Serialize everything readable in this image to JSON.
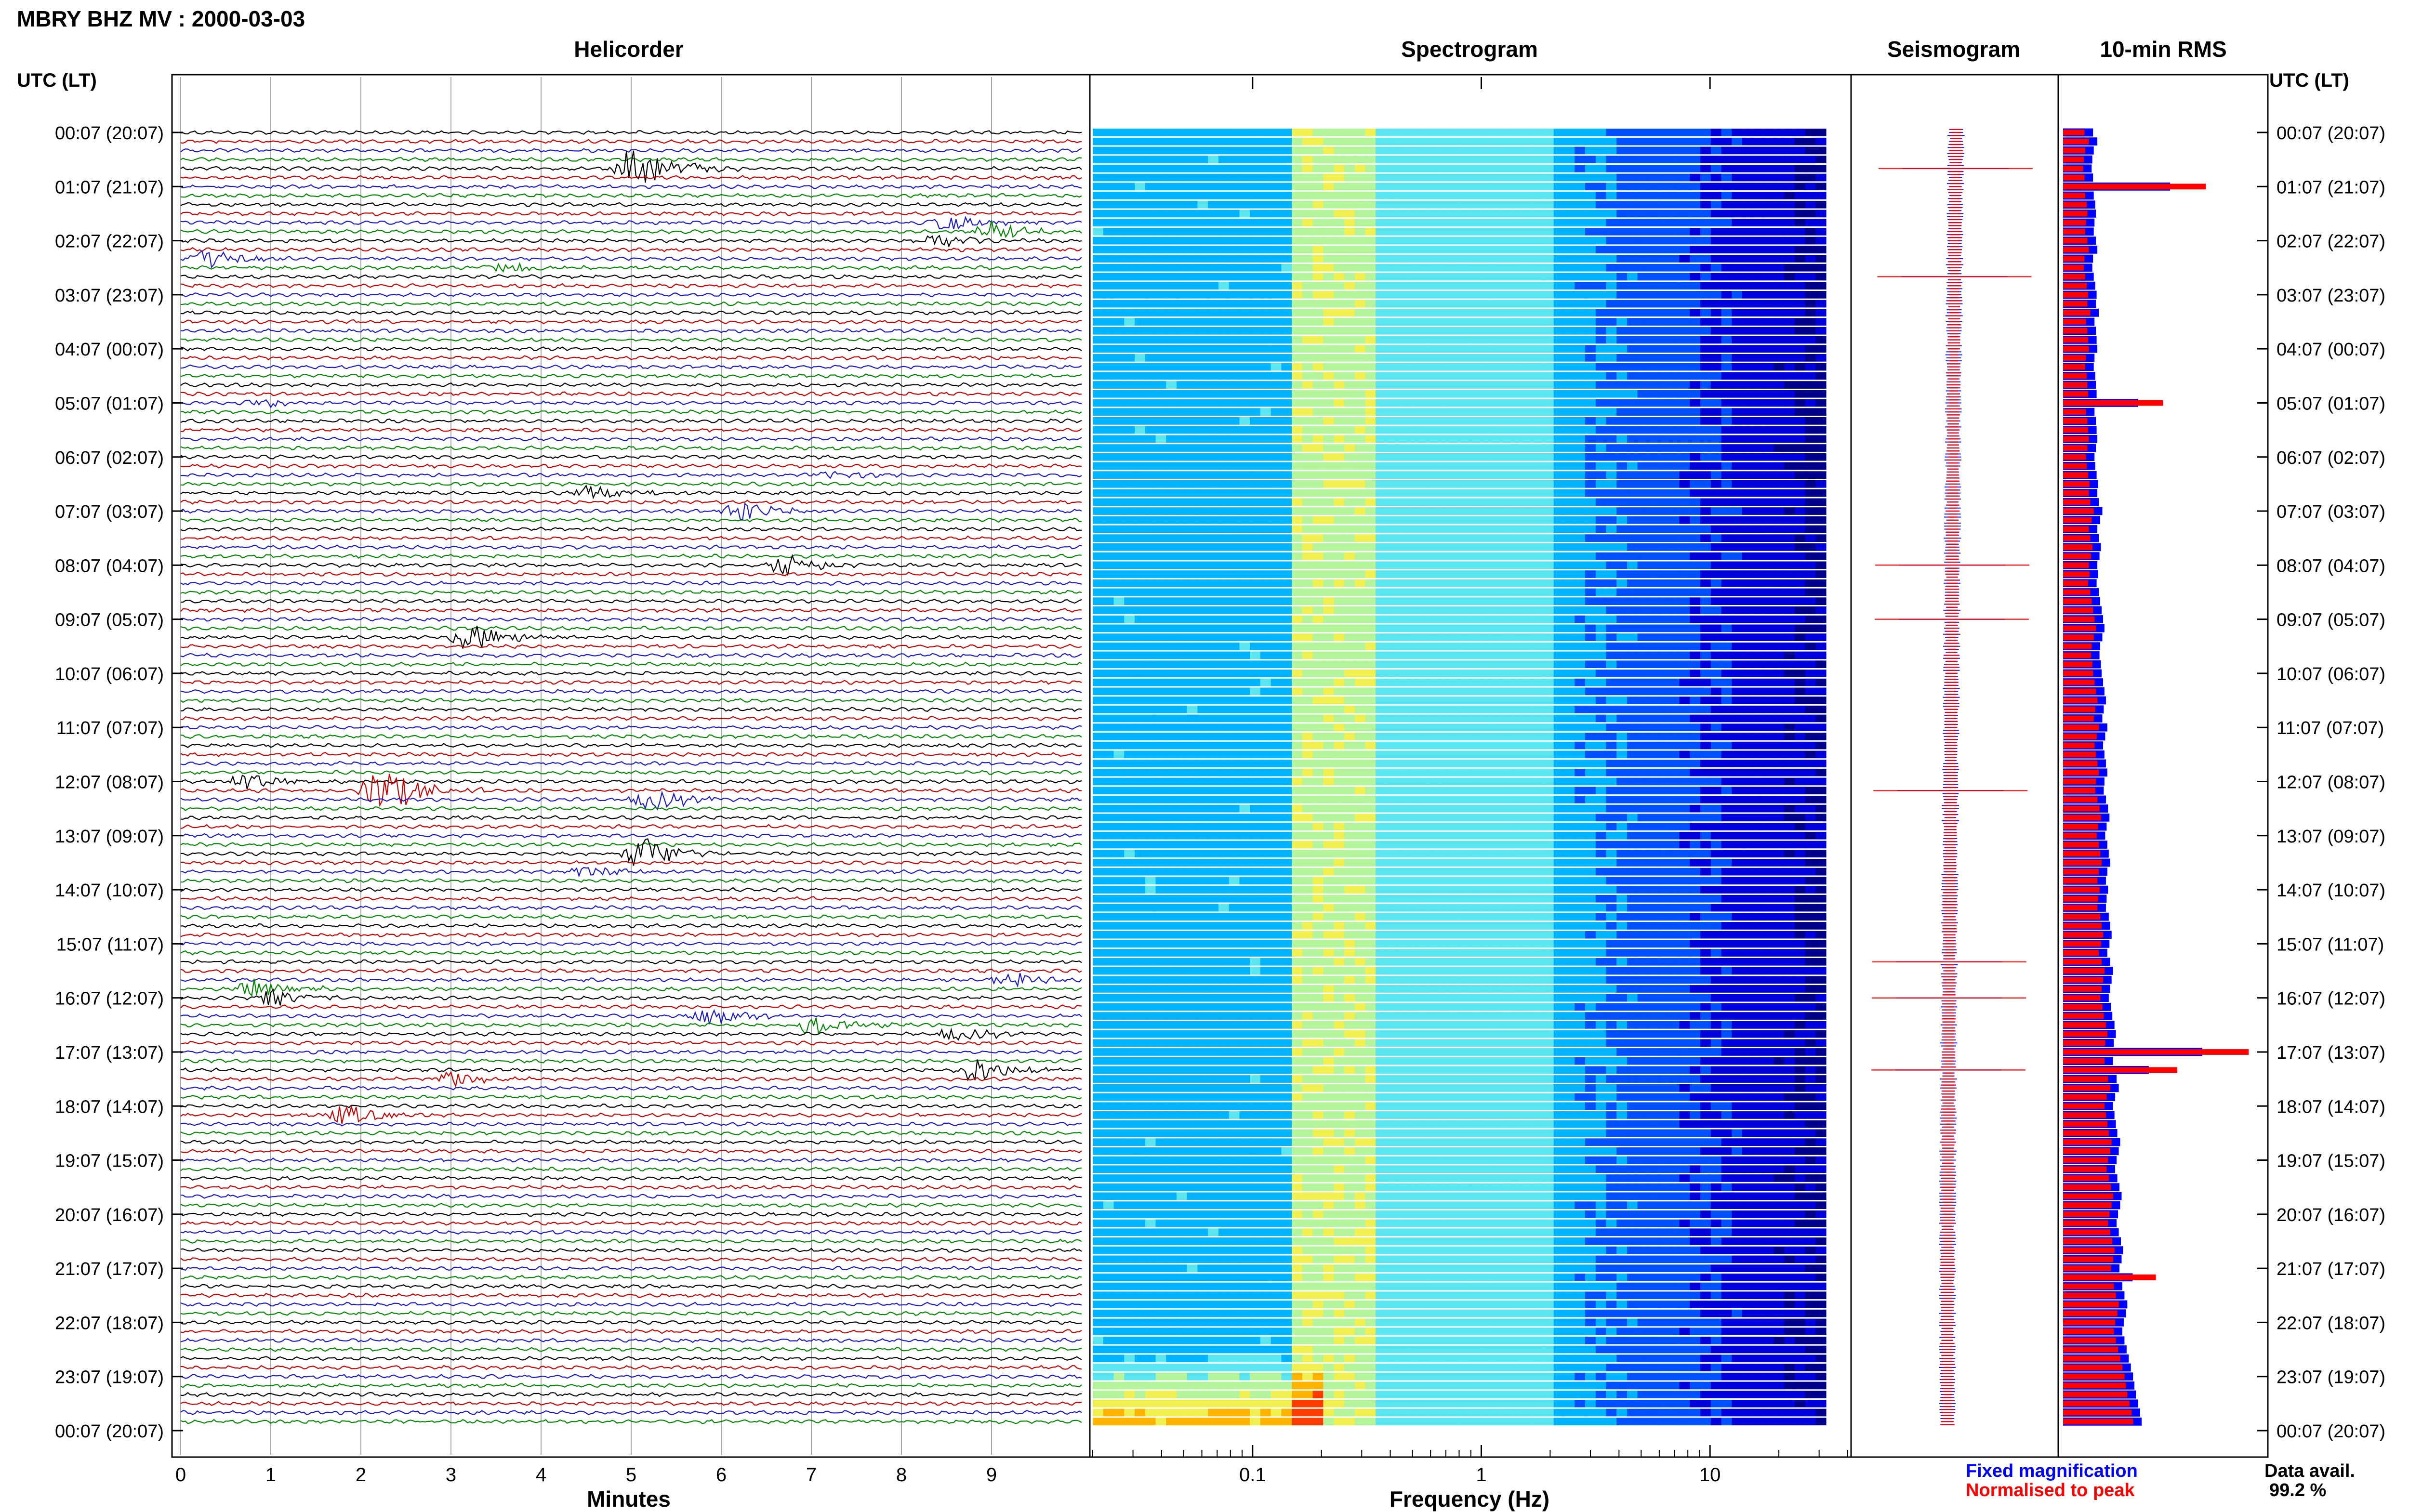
{
  "header": {
    "station_title": "MBRY BHZ MV : 2000-03-03",
    "left_axis_title": "UTC (LT)",
    "right_axis_title": "UTC (LT)"
  },
  "panels": {
    "helicorder": {
      "title": "Helicorder",
      "xlabel": "Minutes"
    },
    "spectrogram": {
      "title": "Spectrogram",
      "xlabel": "Frequency (Hz)"
    },
    "seismogram": {
      "title": "Seismogram"
    },
    "rms": {
      "title": "10-min RMS"
    }
  },
  "legend": {
    "fixed_label": "Fixed magnification",
    "normalised_label": "Normalised to peak"
  },
  "data_availability": {
    "label": "Data avail.",
    "value": "99.2 %"
  },
  "colors": {
    "trace_colors": [
      "#000000",
      "#cc0000",
      "#1a1acc",
      "#008800"
    ],
    "fixed_magnification": "#0000ff",
    "normalised_to_peak": "#ff0000",
    "grid": "#888888"
  },
  "chart_data": [
    {
      "type": "line",
      "name": "helicorder",
      "x_ticks": [
        "0",
        "1",
        "2",
        "3",
        "4",
        "5",
        "6",
        "7",
        "8",
        "9"
      ],
      "xlim": [
        0,
        10
      ],
      "time_labels": [
        "00:07 (20:07)",
        "01:07 (21:07)",
        "02:07 (22:07)",
        "03:07 (23:07)",
        "04:07 (00:07)",
        "05:07 (01:07)",
        "06:07 (02:07)",
        "07:07 (03:07)",
        "08:07 (04:07)",
        "09:07 (05:07)",
        "10:07 (06:07)",
        "11:07 (07:07)",
        "12:07 (08:07)",
        "13:07 (09:07)",
        "14:07 (10:07)",
        "15:07 (11:07)",
        "16:07 (12:07)",
        "17:07 (13:07)",
        "18:07 (14:07)",
        "19:07 (15:07)",
        "20:07 (16:07)",
        "21:07 (17:07)",
        "22:07 (18:07)",
        "23:07 (19:07)",
        "00:07 (20:07)"
      ],
      "rows": 144,
      "events": [
        {
          "row": 4,
          "minute": 5.0,
          "amp": 3.5
        },
        {
          "row": 10,
          "minute": 8.5,
          "amp": 1.3
        },
        {
          "row": 11,
          "minute": 9.0,
          "amp": 1.2
        },
        {
          "row": 12,
          "minute": 8.4,
          "amp": 1.0
        },
        {
          "row": 14,
          "minute": 0.3,
          "amp": 1.4
        },
        {
          "row": 15,
          "minute": 3.5,
          "amp": 0.9
        },
        {
          "row": 30,
          "minute": 0.9,
          "amp": 0.6
        },
        {
          "row": 38,
          "minute": 7.2,
          "amp": 0.6
        },
        {
          "row": 40,
          "minute": 4.5,
          "amp": 1.2
        },
        {
          "row": 42,
          "minute": 6.2,
          "amp": 1.5
        },
        {
          "row": 48,
          "minute": 6.7,
          "amp": 1.6
        },
        {
          "row": 56,
          "minute": 3.2,
          "amp": 2.0
        },
        {
          "row": 72,
          "minute": 0.7,
          "amp": 1.3
        },
        {
          "row": 73,
          "minute": 2.2,
          "amp": 3.6
        },
        {
          "row": 74,
          "minute": 5.2,
          "amp": 1.6
        },
        {
          "row": 80,
          "minute": 5.1,
          "amp": 2.4
        },
        {
          "row": 82,
          "minute": 4.5,
          "amp": 0.9
        },
        {
          "row": 94,
          "minute": 9.2,
          "amp": 1.2
        },
        {
          "row": 95,
          "minute": 0.8,
          "amp": 1.3
        },
        {
          "row": 96,
          "minute": 1.0,
          "amp": 1.2
        },
        {
          "row": 98,
          "minute": 5.8,
          "amp": 1.5
        },
        {
          "row": 99,
          "minute": 7.0,
          "amp": 1.3
        },
        {
          "row": 100,
          "minute": 8.6,
          "amp": 1.0
        },
        {
          "row": 104,
          "minute": 8.8,
          "amp": 1.8
        },
        {
          "row": 105,
          "minute": 3.0,
          "amp": 1.2
        },
        {
          "row": 109,
          "minute": 1.8,
          "amp": 1.4
        }
      ]
    },
    {
      "type": "heatmap",
      "name": "spectrogram",
      "x_scale": "log",
      "xlim": [
        0.02,
        40
      ],
      "x_ticks": [
        "0.1",
        "1",
        "10"
      ],
      "rows": 144,
      "colormap": [
        "#00008c",
        "#0000dc",
        "#0050ff",
        "#00b4ff",
        "#5ae6f0",
        "#b4f59b",
        "#f0f050",
        "#ffb400",
        "#ff3c00"
      ],
      "energy_peak_hz": 0.2
    },
    {
      "type": "line",
      "name": "seismogram",
      "description_series": [
        "Fixed magnification",
        "Normalised to peak"
      ],
      "spikes_rows": [
        4,
        16,
        48,
        54,
        73,
        92,
        96,
        104
      ]
    },
    {
      "type": "bar",
      "name": "10-min RMS",
      "orientation": "horizontal",
      "series": [
        {
          "name": "Fixed magnification",
          "values": [
            0.42,
            0.48,
            0.43,
            0.41,
            0.4,
            0.42,
            0.44,
            0.43,
            0.45,
            0.46,
            0.44,
            0.43,
            0.46,
            0.48,
            0.42,
            0.41,
            0.43,
            0.45,
            0.47,
            0.46,
            0.5,
            0.44,
            0.46,
            0.47,
            0.48,
            0.44,
            0.43,
            0.45,
            0.46,
            0.47,
            0.45,
            0.44,
            0.46,
            0.47,
            0.48,
            0.46,
            0.44,
            0.45,
            0.47,
            0.49,
            0.48,
            0.5,
            0.55,
            0.52,
            0.48,
            0.5,
            0.53,
            0.51,
            0.48,
            0.49,
            0.47,
            0.5,
            0.52,
            0.54,
            0.56,
            0.58,
            0.55,
            0.52,
            0.51,
            0.53,
            0.54,
            0.56,
            0.58,
            0.6,
            0.57,
            0.55,
            0.62,
            0.59,
            0.56,
            0.58,
            0.6,
            0.62,
            0.58,
            0.57,
            0.6,
            0.63,
            0.65,
            0.61,
            0.59,
            0.62,
            0.64,
            0.66,
            0.62,
            0.6,
            0.63,
            0.61,
            0.6,
            0.64,
            0.66,
            0.68,
            0.65,
            0.62,
            0.66,
            0.7,
            0.68,
            0.66,
            0.64,
            0.67,
            0.69,
            0.72,
            0.74,
            0.71,
            0.68,
            0.7,
            0.72,
            0.75,
            0.78,
            0.73,
            0.7,
            0.72,
            0.74,
            0.76,
            0.8,
            0.78,
            0.75,
            0.73,
            0.76,
            0.79,
            0.82,
            0.8,
            0.77,
            0.75,
            0.78,
            0.81,
            0.84,
            0.82,
            0.79,
            0.8,
            0.83,
            0.86,
            0.9,
            0.88,
            0.85,
            0.83,
            0.86,
            0.89,
            0.92,
            0.95,
            0.98,
            1.0,
            1.02,
            1.05,
            1.08,
            1.1
          ]
        },
        {
          "name": "Normalised to peak",
          "values": [
            0.3,
            0.36,
            0.31,
            0.29,
            0.28,
            0.3,
            0.32,
            0.31,
            0.33,
            0.34,
            0.32,
            0.31,
            0.34,
            0.36,
            0.3,
            0.29,
            0.31,
            0.33,
            0.35,
            0.34,
            0.38,
            0.32,
            0.34,
            0.35,
            0.36,
            0.32,
            0.31,
            0.33,
            0.34,
            0.35,
            0.33,
            0.32,
            0.34,
            0.35,
            0.36,
            0.34,
            0.32,
            0.33,
            0.35,
            0.37,
            0.36,
            0.38,
            0.43,
            0.4,
            0.36,
            0.38,
            0.41,
            0.39,
            0.36,
            0.37,
            0.35,
            0.38,
            0.4,
            0.42,
            0.44,
            0.46,
            0.43,
            0.4,
            0.39,
            0.41,
            0.42,
            0.44,
            0.46,
            0.48,
            0.45,
            0.43,
            0.5,
            0.47,
            0.44,
            0.46,
            0.48,
            0.5,
            0.46,
            0.45,
            0.48,
            0.51,
            0.53,
            0.49,
            0.47,
            0.5,
            0.52,
            0.54,
            0.5,
            0.48,
            0.51,
            0.49,
            0.48,
            0.52,
            0.54,
            0.56,
            0.53,
            0.5,
            0.54,
            0.58,
            0.56,
            0.54,
            0.52,
            0.55,
            0.57,
            0.6,
            0.62,
            0.59,
            0.56,
            0.58,
            0.6,
            0.63,
            0.66,
            0.61,
            0.58,
            0.6,
            0.62,
            0.64,
            0.68,
            0.66,
            0.63,
            0.61,
            0.64,
            0.67,
            0.7,
            0.68,
            0.65,
            0.63,
            0.66,
            0.69,
            0.72,
            0.7,
            0.67,
            0.68,
            0.71,
            0.74,
            0.78,
            0.76,
            0.73,
            0.71,
            0.74,
            0.77,
            0.8,
            0.83,
            0.86,
            0.88,
            0.9,
            0.93,
            0.96,
            0.98
          ]
        }
      ],
      "peak_rows": {
        "6": 2.0,
        "30": 1.4,
        "102": 2.6,
        "104": 1.6,
        "127": 1.3
      }
    }
  ]
}
